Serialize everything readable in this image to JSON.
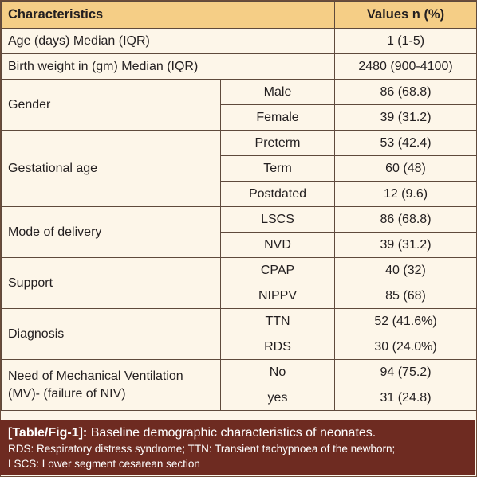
{
  "table": {
    "headers": {
      "characteristics": "Characteristics",
      "values": "Values n (%)"
    },
    "rows": [
      {
        "label": "Age (days) Median (IQR)",
        "value": "1 (1-5)"
      },
      {
        "label": "Birth weight in (gm) Median (IQR)",
        "value": "2480 (900-4100)"
      }
    ],
    "groups": [
      {
        "label": "Gender",
        "items": [
          {
            "sub": "Male",
            "value": "86 (68.8)"
          },
          {
            "sub": "Female",
            "value": "39 (31.2)"
          }
        ]
      },
      {
        "label": "Gestational age",
        "items": [
          {
            "sub": "Preterm",
            "value": "53 (42.4)"
          },
          {
            "sub": "Term",
            "value": "60 (48)"
          },
          {
            "sub": "Postdated",
            "value": "12 (9.6)"
          }
        ]
      },
      {
        "label": "Mode of delivery",
        "items": [
          {
            "sub": "LSCS",
            "value": "86 (68.8)"
          },
          {
            "sub": "NVD",
            "value": "39 (31.2)"
          }
        ]
      },
      {
        "label": "Support",
        "items": [
          {
            "sub": "CPAP",
            "value": "40 (32)"
          },
          {
            "sub": "NIPPV",
            "value": "85 (68)"
          }
        ]
      },
      {
        "label": "Diagnosis",
        "items": [
          {
            "sub": "TTN",
            "value": "52 (41.6%)"
          },
          {
            "sub": "RDS",
            "value": "30 (24.0%)"
          }
        ]
      },
      {
        "label_line1": "Need of Mechanical Ventilation",
        "label_line2": "(MV)- (failure of NIV)",
        "items": [
          {
            "sub": "No",
            "value": "94 (75.2)"
          },
          {
            "sub": "yes",
            "value": "31 (24.8)"
          }
        ]
      }
    ]
  },
  "caption": {
    "tag": "[Table/Fig-1]:",
    "title": " Baseline demographic characteristics of neonates.",
    "note_line1": "RDS: Respiratory distress syndrome; TTN: Transient tachypnoea of the newborn;",
    "note_line2": "LSCS: Lower segment cesarean section"
  },
  "colors": {
    "header_bg": "#f5ce86",
    "body_bg": "#fdf6e9",
    "caption_bg": "#6e2b21",
    "border": "#5f4a3c"
  }
}
